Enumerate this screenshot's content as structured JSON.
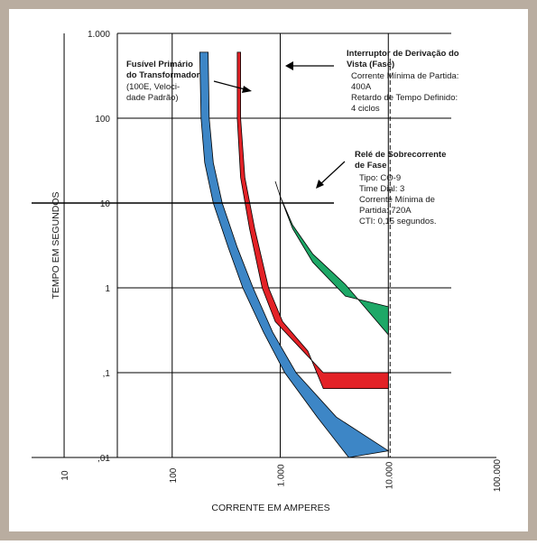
{
  "colors": {
    "frame": "#b9ada0",
    "fuse": "#3d86c6",
    "breaker": "#e32227",
    "relay": "#1ea867",
    "grid": "#000000"
  },
  "chart_data": {
    "type": "line",
    "log_x": true,
    "log_y": true,
    "xlim": [
      5,
      100000
    ],
    "ylim": [
      0.01,
      1000
    ],
    "xlabel": "CORRENTE EM AMPERES",
    "ylabel": "TEMPO EM SEGUNDOS",
    "x_ticks": [
      {
        "value": 10,
        "label": "10"
      },
      {
        "value": 100,
        "label": "100"
      },
      {
        "value": 1000,
        "label": "1.000"
      },
      {
        "value": 10000,
        "label": "10.000"
      },
      {
        "value": 100000,
        "label": "100.000"
      }
    ],
    "y_ticks": [
      {
        "value": 1000,
        "label": "1.000"
      },
      {
        "value": 100,
        "label": "100"
      },
      {
        "value": 10,
        "label": "10"
      },
      {
        "value": 1,
        "label": "1"
      },
      {
        "value": 0.1,
        "label": ",1"
      },
      {
        "value": 0.01,
        "label": ",01"
      }
    ],
    "reference_lines": {
      "horizontal_time": 10,
      "dashed_current": 10000
    },
    "series": [
      {
        "id": "fuse",
        "name": "Fusível Primário do Transformador",
        "color": "#3d86c6",
        "minimum": [
          [
            180,
            600
          ],
          [
            185,
            100
          ],
          [
            200,
            30
          ],
          [
            240,
            10
          ],
          [
            330,
            3
          ],
          [
            450,
            1
          ],
          [
            700,
            0.3
          ],
          [
            1100,
            0.1
          ],
          [
            2200,
            0.03
          ],
          [
            4300,
            0.01
          ]
        ],
        "maximum": [
          [
            215,
            600
          ],
          [
            220,
            100
          ],
          [
            240,
            30
          ],
          [
            290,
            10
          ],
          [
            400,
            3
          ],
          [
            560,
            1
          ],
          [
            850,
            0.3
          ],
          [
            1400,
            0.1
          ],
          [
            3300,
            0.03
          ],
          [
            10000,
            0.012
          ]
        ]
      },
      {
        "id": "breaker",
        "name": "Interruptor de Derivação do Vista (Fase)",
        "color": "#e32227",
        "minimum": [
          [
            400,
            600
          ],
          [
            400,
            100
          ],
          [
            430,
            20
          ],
          [
            520,
            5
          ],
          [
            680,
            1
          ],
          [
            900,
            0.4
          ],
          [
            1500,
            0.2
          ],
          [
            2500,
            0.1
          ],
          [
            10000,
            0.1
          ]
        ],
        "maximum": [
          [
            430,
            600
          ],
          [
            430,
            100
          ],
          [
            470,
            20
          ],
          [
            580,
            5
          ],
          [
            780,
            1
          ],
          [
            1050,
            0.4
          ],
          [
            1800,
            0.18
          ],
          [
            2500,
            0.065
          ],
          [
            10000,
            0.065
          ]
        ]
      },
      {
        "id": "relay",
        "name": "Relé de Sobrecorrente de Fase",
        "color": "#1ea867",
        "minimum": [
          [
            900,
            18
          ],
          [
            1000,
            12
          ],
          [
            1300,
            5
          ],
          [
            2000,
            2
          ],
          [
            4000,
            0.8
          ],
          [
            10000,
            0.6
          ]
        ],
        "maximum": [
          [
            900,
            18
          ],
          [
            1000,
            12
          ],
          [
            1300,
            5.5
          ],
          [
            2000,
            2.5
          ],
          [
            4000,
            1.1
          ],
          [
            10000,
            0.28
          ]
        ]
      }
    ]
  },
  "annotations": {
    "fuse": {
      "title_lines": [
        "Fusível Primário",
        "do Transformador"
      ],
      "detail_lines": [
        "(100E, Veloci-",
        "dade Padrão)"
      ]
    },
    "breaker": {
      "title_lines": [
        "Interruptor de Derivação do",
        "Vista (Fase)"
      ],
      "detail_lines": [
        "Corrente Mínima de Partida:",
        "400A",
        "Retardo de Tempo Definido:",
        "4 ciclos"
      ]
    },
    "relay": {
      "title_lines": [
        "Relé de Sobrecorrente",
        "de Fase"
      ],
      "detail_lines": [
        "Tipo: CO-9",
        "Time Dial: 3",
        "Corrente Mínima de",
        "Partida: 720A",
        "CTI: 0,15 segundos."
      ]
    }
  }
}
